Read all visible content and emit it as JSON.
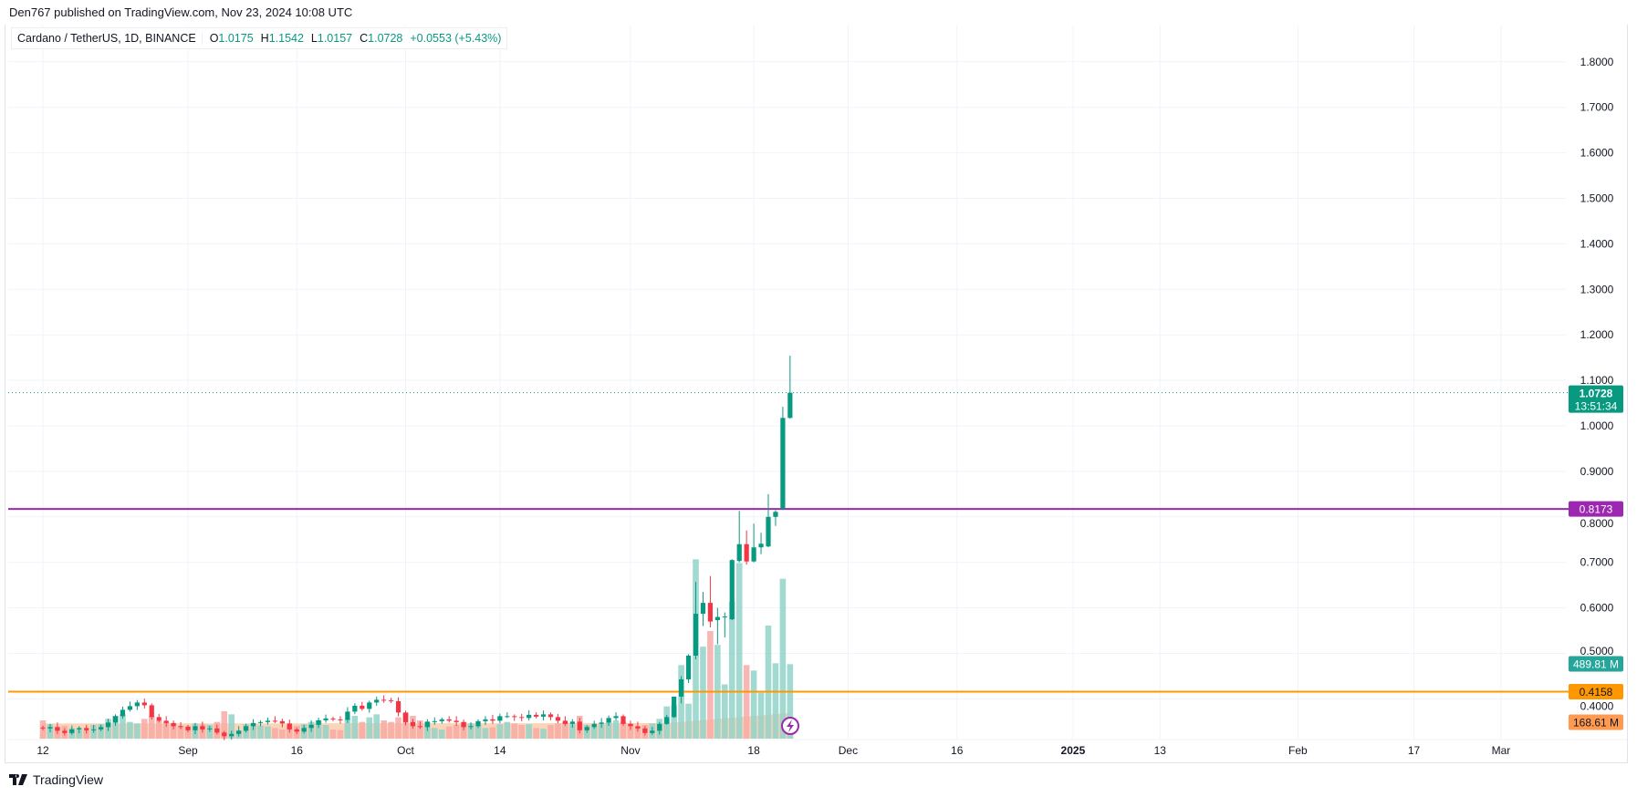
{
  "header": {
    "published": "Den767 published on TradingView.com, Nov 23, 2024 10:08 UTC"
  },
  "legend": {
    "symbol": "Cardano / TetherUS, 1D, BINANCE",
    "o_label": "O",
    "o": "1.0175",
    "h_label": "H",
    "h": "1.1542",
    "l_label": "L",
    "l": "1.0157",
    "c_label": "C",
    "c": "1.0728",
    "change": "+0.0553 (+5.43%)"
  },
  "labels": {
    "last_price": "1.0728",
    "countdown": "13:51:34",
    "purple_line": "0.8173",
    "orange_line": "0.4158",
    "volume_last": "489.81 M",
    "volume_ma": "168.61 M"
  },
  "footer": {
    "brand": "TradingView"
  },
  "colors": {
    "up": "#089981",
    "down": "#f23645",
    "vol_up": "#92d2c9",
    "vol_down": "#f7a9a7",
    "purple": "#9c27b0",
    "orange": "#ff9800",
    "ma_fill": "#f9c79f"
  },
  "chart_data": {
    "type": "candlestick",
    "title": "Cardano / TetherUS, 1D, BINANCE",
    "ylim": [
      0.38,
      1.86
    ],
    "y_ticks": [
      "1.8000",
      "1.7000",
      "1.6000",
      "1.5000",
      "1.4000",
      "1.3000",
      "1.2000",
      "1.1000",
      "1.0000",
      "0.9000",
      "0.8000",
      "0.7000",
      "0.6000",
      "0.5000",
      "0.4000"
    ],
    "y_tick_values": [
      1.8,
      1.7,
      1.6,
      1.5,
      1.4,
      1.3,
      1.2,
      1.1,
      1.0,
      0.9,
      0.8,
      0.7,
      0.6,
      0.5,
      0.4
    ],
    "x_ticks": [
      {
        "label": "12",
        "day": 0
      },
      {
        "label": "Sep",
        "day": 20
      },
      {
        "label": "16",
        "day": 35
      },
      {
        "label": "Oct",
        "day": 50
      },
      {
        "label": "14",
        "day": 63
      },
      {
        "label": "Nov",
        "day": 81
      },
      {
        "label": "18",
        "day": 98
      },
      {
        "label": "Dec",
        "day": 111
      },
      {
        "label": "16",
        "day": 126
      },
      {
        "label": "2025",
        "day": 142,
        "bold": true
      },
      {
        "label": "13",
        "day": 154
      },
      {
        "label": "Feb",
        "day": 173
      },
      {
        "label": "17",
        "day": 189
      },
      {
        "label": "Mar",
        "day": 201
      }
    ],
    "start_date": "2024-08-12",
    "early_closes": [
      0.335,
      0.338,
      0.33,
      0.325,
      0.333,
      0.336,
      0.331,
      0.333,
      0.338,
      0.348,
      0.362,
      0.376,
      0.384,
      0.392,
      0.386,
      0.36,
      0.352,
      0.347,
      0.34,
      0.339,
      0.331,
      0.34,
      0.333,
      0.335,
      0.326,
      0.318,
      0.323,
      0.33,
      0.34,
      0.347,
      0.349,
      0.352,
      0.351,
      0.346,
      0.333,
      0.328,
      0.336,
      0.343,
      0.353,
      0.357,
      0.355,
      0.354,
      0.372,
      0.385,
      0.378,
      0.392,
      0.398,
      0.397,
      0.395,
      0.37,
      0.349,
      0.34,
      0.338,
      0.35,
      0.351,
      0.355,
      0.352,
      0.349,
      0.338,
      0.34,
      0.351,
      0.355,
      0.352,
      0.362,
      0.362,
      0.36,
      0.358,
      0.365,
      0.361,
      0.366,
      0.36,
      0.352,
      0.345,
      0.35,
      0.331,
      0.338,
      0.345,
      0.348,
      0.358,
      0.362,
      0.345,
      0.34,
      0.335,
      0.325,
      0.33,
      0.345
    ],
    "early_volumes_m": [
      120,
      95,
      80,
      85,
      70,
      60,
      55,
      90,
      95,
      130,
      150,
      160,
      110,
      100,
      130,
      150,
      120,
      110,
      100,
      85,
      80,
      100,
      95,
      90,
      110,
      180,
      160,
      55,
      95,
      100,
      85,
      80,
      70,
      60,
      90,
      85,
      95,
      110,
      120,
      90,
      60,
      55,
      130,
      150,
      110,
      140,
      160,
      120,
      110,
      140,
      170,
      150,
      120,
      110,
      70,
      60,
      80,
      90,
      110,
      100,
      90,
      70,
      75,
      95,
      110,
      100,
      90,
      95,
      70,
      65,
      90,
      100,
      110,
      95,
      150,
      90,
      80,
      95,
      110,
      120,
      110,
      100,
      80,
      90,
      100,
      130
    ],
    "late_candles": [
      {
        "date": "Nov 6",
        "o": 0.345,
        "h": 0.365,
        "l": 0.343,
        "c": 0.36,
        "v": 212
      },
      {
        "date": "Nov 7",
        "o": 0.36,
        "h": 0.405,
        "l": 0.358,
        "c": 0.405,
        "v": 218
      },
      {
        "date": "Nov 8",
        "o": 0.405,
        "h": 0.45,
        "l": 0.39,
        "c": 0.443,
        "v": 484
      },
      {
        "date": "Nov 9",
        "o": 0.443,
        "h": 0.498,
        "l": 0.435,
        "c": 0.495,
        "v": 230
      },
      {
        "date": "Nov 10",
        "o": 0.495,
        "h": 0.657,
        "l": 0.487,
        "c": 0.587,
        "v": 1180
      },
      {
        "date": "Nov 11",
        "o": 0.587,
        "h": 0.635,
        "l": 0.56,
        "c": 0.611,
        "v": 605
      },
      {
        "date": "Nov 12",
        "o": 0.611,
        "h": 0.67,
        "l": 0.557,
        "c": 0.57,
        "v": 708
      },
      {
        "date": "Nov 13",
        "o": 0.573,
        "h": 0.6,
        "l": 0.52,
        "c": 0.58,
        "v": 617
      },
      {
        "date": "Nov 14",
        "o": 0.58,
        "h": 0.59,
        "l": 0.535,
        "c": 0.581,
        "v": 357
      },
      {
        "date": "Nov 15",
        "o": 0.575,
        "h": 0.707,
        "l": 0.573,
        "c": 0.705,
        "v": 901
      },
      {
        "date": "Nov 16",
        "o": 0.703,
        "h": 0.813,
        "l": 0.7,
        "c": 0.74,
        "v": 1155
      },
      {
        "date": "Nov 17",
        "o": 0.74,
        "h": 0.77,
        "l": 0.695,
        "c": 0.702,
        "v": 484
      },
      {
        "date": "Nov 18",
        "o": 0.702,
        "h": 0.785,
        "l": 0.7,
        "c": 0.733,
        "v": 448
      },
      {
        "date": "Nov 19",
        "o": 0.733,
        "h": 0.765,
        "l": 0.718,
        "c": 0.741,
        "v": 302
      },
      {
        "date": "Nov 20",
        "o": 0.735,
        "h": 0.85,
        "l": 0.733,
        "c": 0.8,
        "v": 744
      },
      {
        "date": "Nov 21",
        "o": 0.8,
        "h": 0.815,
        "l": 0.78,
        "c": 0.811,
        "v": 496
      },
      {
        "date": "Nov 22",
        "o": 0.818,
        "h": 1.042,
        "l": 0.815,
        "c": 1.0175,
        "v": 1052
      },
      {
        "date": "Nov 23",
        "o": 1.0175,
        "h": 1.1542,
        "l": 1.0157,
        "c": 1.0728,
        "v": 489.81
      }
    ],
    "volume_ma_points": [
      [
        0,
        100
      ],
      [
        86,
        102
      ],
      [
        103,
        168.61
      ]
    ],
    "horizontal_lines": [
      {
        "price": 0.8173,
        "color": "purple"
      },
      {
        "price": 0.4158,
        "color": "orange"
      }
    ],
    "last_price": 1.0728
  }
}
